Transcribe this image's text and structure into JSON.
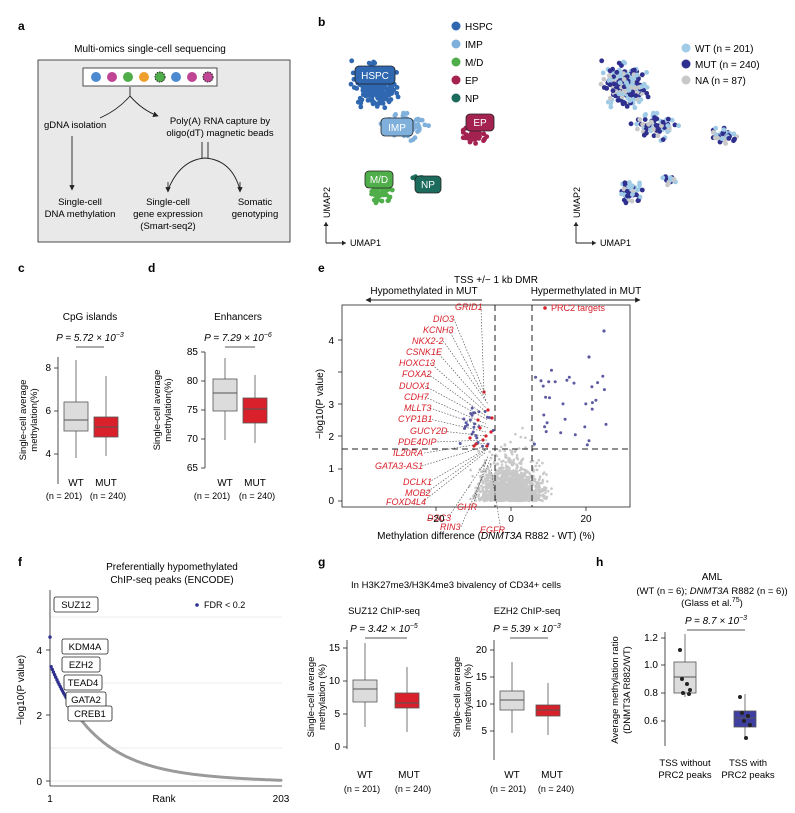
{
  "colors": {
    "hspc": "#2f67b0",
    "imp": "#7fb0dc",
    "md": "#4fae4a",
    "ep": "#a3224f",
    "np": "#1c6b5c",
    "wt": "#9fcbe6",
    "mut": "#2e2f8e",
    "na": "#c8c8c8",
    "wtbox": "#dcdcdc",
    "mutbox": "#d8212b",
    "red": "#d8212b",
    "dmrgray": "#c8c8c8",
    "dmrpurple": "#5b5aa3",
    "panelbg": "#e9e9e9"
  },
  "a": {
    "label": "a",
    "title": "Multi-omics single-cell sequencing",
    "gdna": "gDNA isolation",
    "polya_1": "Poly(A) RNA capture by",
    "polya_2": "oligo(dT) magnetic beads",
    "meth_1": "Single-cell",
    "meth_2": "DNA methylation",
    "expr_1": "Single-cell",
    "expr_2": "gene expression",
    "expr_3": "(Smart-seq2)",
    "geno_1": "Somatic",
    "geno_2": "genotyping"
  },
  "b": {
    "label": "b",
    "legend_left": [
      "HSPC",
      "IMP",
      "M/D",
      "EP",
      "NP"
    ],
    "cluster_labels": [
      "HSPC",
      "IMP",
      "M/D",
      "NP",
      "EP"
    ],
    "legend_right": [
      "WT (n = 201)",
      "MUT (n = 240)",
      "NA (n = 87)"
    ],
    "xlabel": "UMAP1",
    "ylabel": "UMAP2"
  },
  "c": {
    "label": "c",
    "title": "CpG islands",
    "pvalue": "P = 5.72 × 10",
    "pexp": "−3",
    "ylabel_1": "Single-cell average",
    "ylabel_2": "methylation(%)",
    "ticks": [
      "8",
      "6",
      "4"
    ],
    "groups": [
      "WT",
      "MUT"
    ],
    "ns": [
      "(n = 201)",
      "(n = 240)"
    ]
  },
  "d": {
    "label": "d",
    "title": "Enhancers",
    "pvalue": "P = 7.29 × 10",
    "pexp": "−6",
    "ylabel_1": "Single-cell average",
    "ylabel_2": "methylation(%)",
    "ticks": [
      "85",
      "80",
      "75",
      "70",
      "65"
    ],
    "groups": [
      "WT",
      "MUT"
    ],
    "ns": [
      "(n = 201)",
      "(n = 240)"
    ]
  },
  "e": {
    "label": "e",
    "title": "TSS +/− 1 kb DMR",
    "hypo": "Hypomethylated in MUT",
    "hyper": "Hypermethylated in MUT",
    "prc2": "PRC2 targets",
    "genes": [
      "GRID1",
      "DIO3",
      "KCNH3",
      "NKX2-2",
      "CSNK1E",
      "HOXC13",
      "FOXA2",
      "DUOX1",
      "CDH7",
      "MLLT3",
      "CYP1B1",
      "GUCY2D",
      "PDE4DIP",
      "IL20RA",
      "GATA3-AS1",
      "DCLK1",
      "MOB2",
      "FOXD4L4",
      "GHR",
      "DSC3",
      "RIN3",
      "EGFR"
    ],
    "yticks": [
      "4",
      "3",
      "2",
      "1",
      "0"
    ],
    "xticks": [
      "−20",
      "0",
      "20"
    ],
    "ylabel": "−log10(P value)",
    "xlabel_1": "Methylation difference (",
    "xlabel_gene": "DNMT3A",
    "xlabel_2": " R882 - WT) (%)"
  },
  "f": {
    "label": "f",
    "title_1": "Preferentially hypomethylated",
    "title_2": "ChIP-seq peaks (ENCODE)",
    "legend": "FDR < 0.2",
    "labels": [
      "SUZ12",
      "KDM4A",
      "EZH2",
      "TEAD4",
      "GATA2",
      "CREB1"
    ],
    "yticks": [
      "4",
      "2",
      "0"
    ],
    "xticks": [
      "1",
      "203"
    ],
    "xlabel": "Rank",
    "ylabel": "−log10(P value)"
  },
  "g": {
    "label": "g",
    "title": "In H3K27me3/H3K4me3 bivalency of CD34+ cells",
    "suz12": "SUZ12 ChIP-seq",
    "ezh2": "EZH2 ChIP-seq",
    "p1": "P = 3.42 × 10",
    "p1exp": "−5",
    "p2": "P = 5.39 × 10",
    "p2exp": "−3",
    "yticks1": [
      "15",
      "10",
      "5",
      "0"
    ],
    "yticks2": [
      "20",
      "15",
      "10",
      "5"
    ],
    "ylabel_1": "Single-cell average",
    "ylabel_2": "methylation (%)",
    "groups": [
      "WT",
      "MUT"
    ],
    "ns": [
      "(n = 201)",
      "(n = 240)"
    ]
  },
  "h": {
    "label": "h",
    "title": "AML",
    "sub_1": "(WT (n = 6); ",
    "sub_gene": "DNMT3A",
    "sub_2": " R882 (n = 6))",
    "sub_3": "(Glass et al.",
    "ref": "75",
    "sub_4": ")",
    "pvalue": "P = 8.7 × 10",
    "pexp": "−3",
    "yticks": [
      "1.2",
      "1.0",
      "0.8",
      "0.6"
    ],
    "ylabel_1": "Average methylation ratio",
    "ylabel_2": "(DNMT3A R882/WT)",
    "g1_1": "TSS without",
    "g1_2": "PRC2 peaks",
    "g2_1": "TSS with",
    "g2_2": "PRC2 peaks"
  }
}
